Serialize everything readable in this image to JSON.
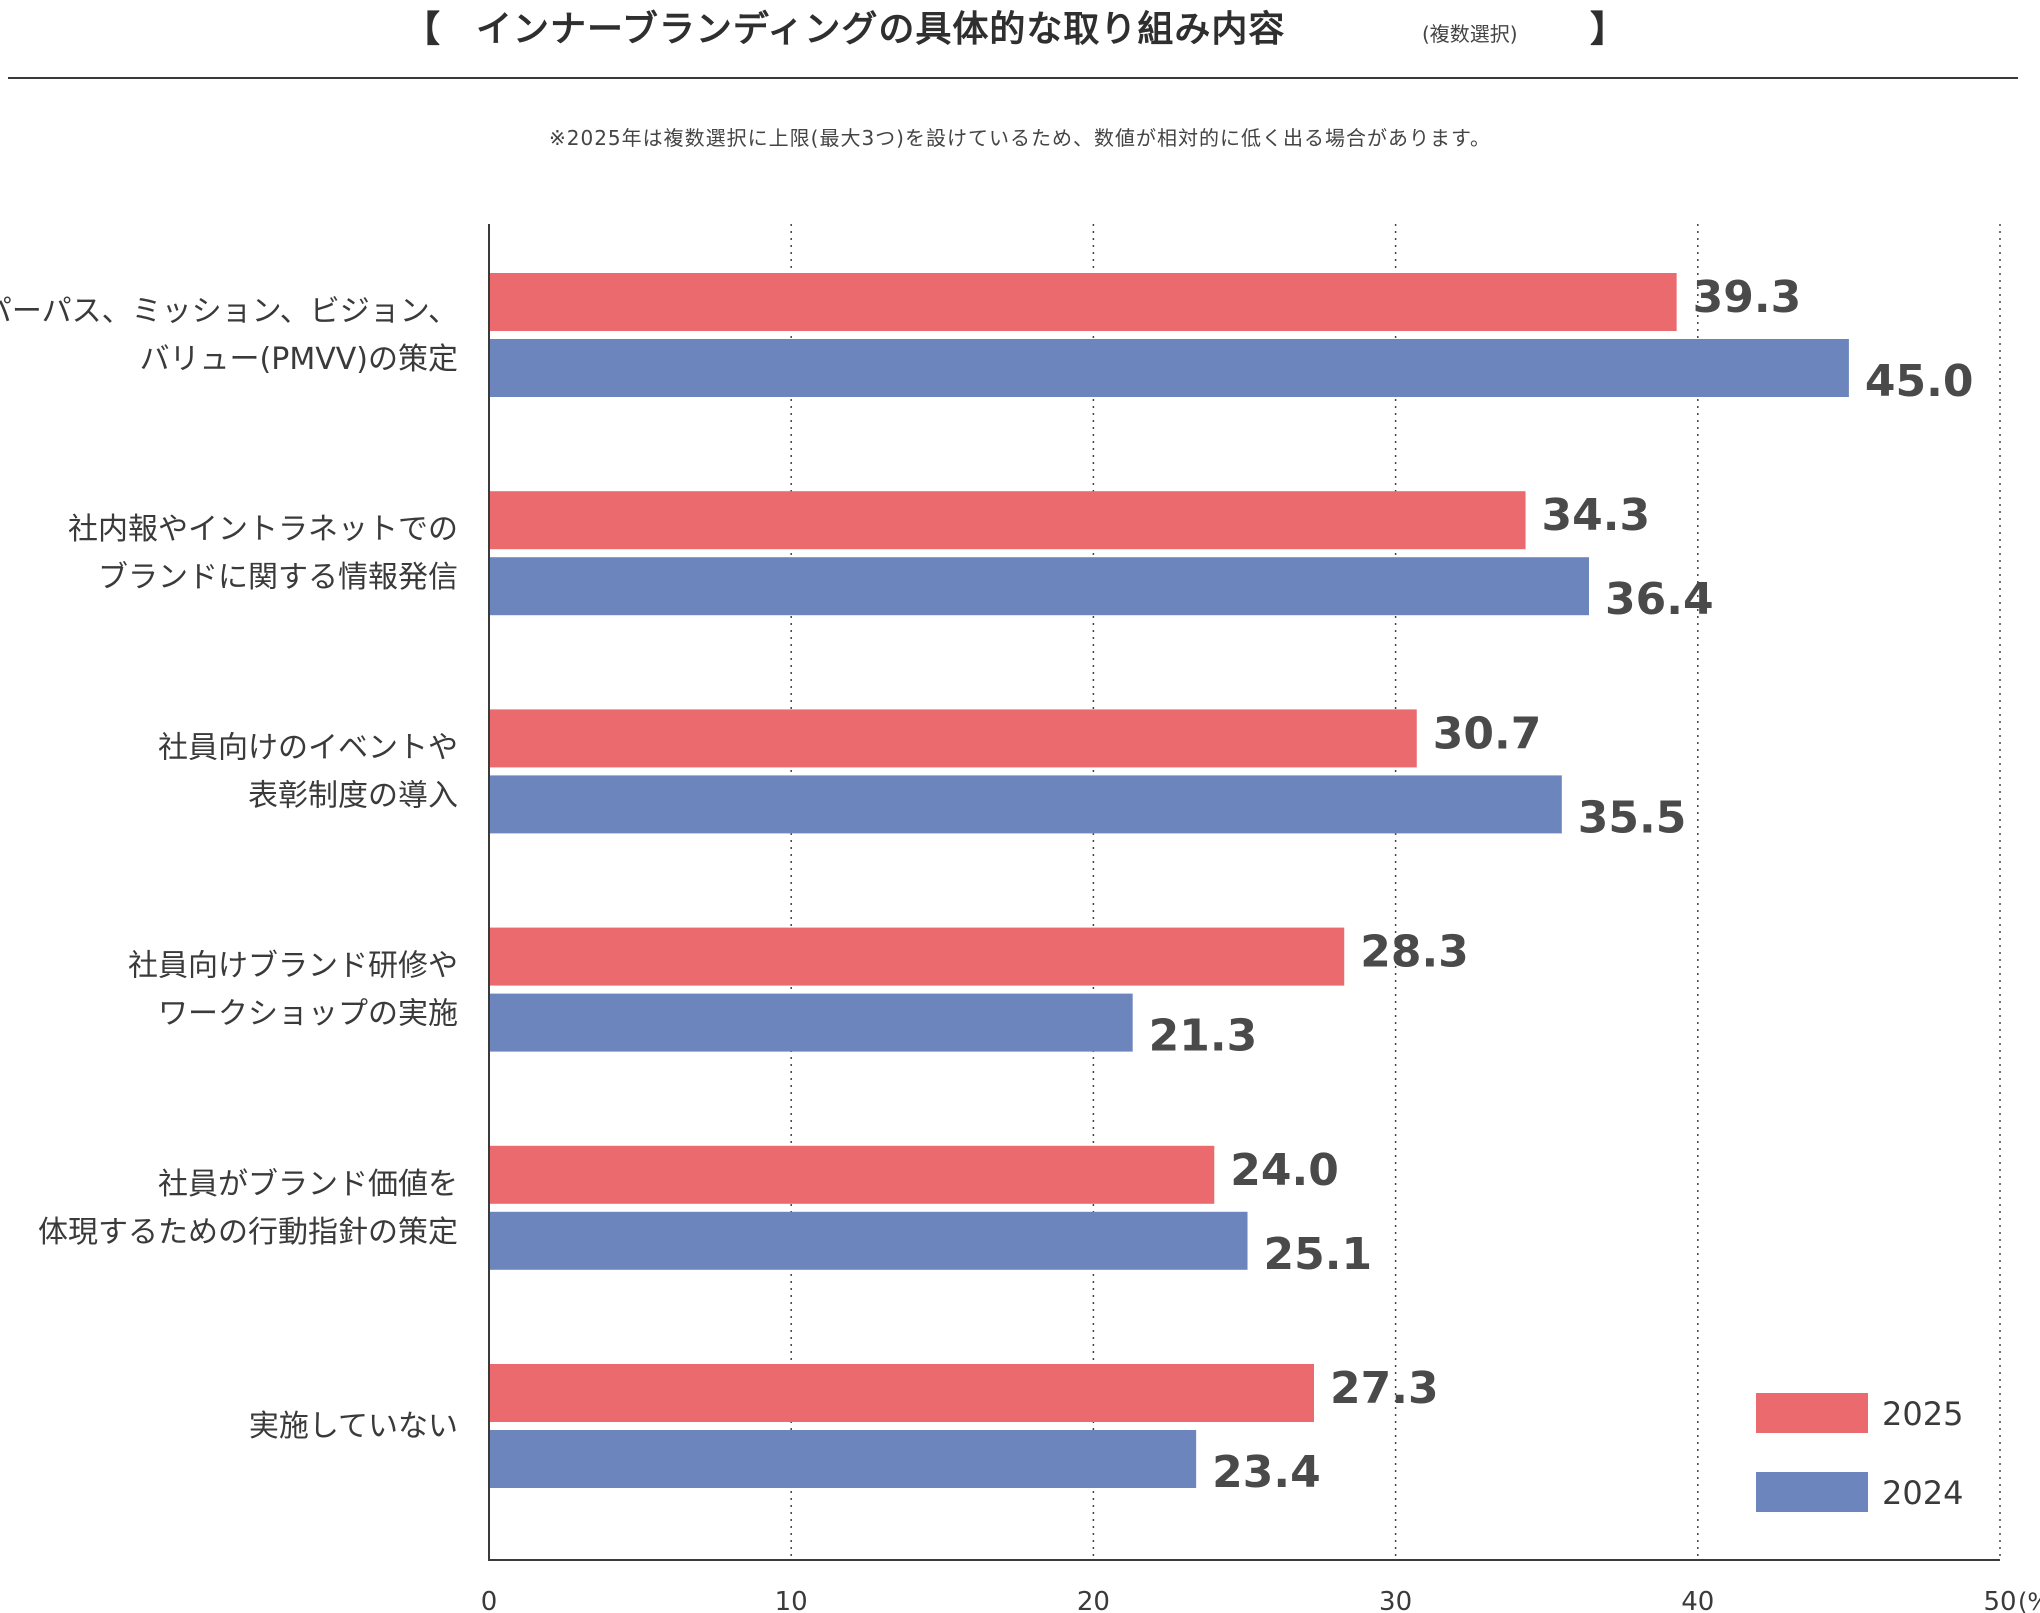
{
  "header": {
    "bracket_open": "【",
    "title": "インナーブランディングの具体的な取り組み内容",
    "subtitle": "(複数選択)",
    "bracket_close": "】",
    "note": "※2025年は複数選択に上限(最大3つ)を設けているため、数値が相対的に低く出る場合があります。"
  },
  "colors": {
    "s2025": "#ea6a6e",
    "s2024": "#6c86bd",
    "axis": "#3a3a3a",
    "grid": "#444444"
  },
  "chart_data": {
    "type": "bar",
    "orientation": "horizontal",
    "title": "インナーブランディングの具体的な取り組み内容",
    "categories": [
      [
        "パーパス、ミッション、ビジョン、",
        "バリュー(PMVV)の策定"
      ],
      [
        "社内報やイントラネットでの",
        "ブランドに関する情報発信"
      ],
      [
        "社員向けのイベントや",
        "表彰制度の導入"
      ],
      [
        "社員向けブランド研修や",
        "ワークショップの実施"
      ],
      [
        "社員がブランド価値を",
        "体現するための行動指針の策定"
      ],
      [
        "実施していない"
      ]
    ],
    "series": [
      {
        "name": "2025",
        "values": [
          39.3,
          34.3,
          30.7,
          28.3,
          24.0,
          27.3
        ],
        "labels": [
          "39.3",
          "34.3",
          "30.7",
          "28.3",
          "24.0",
          "27.3"
        ]
      },
      {
        "name": "2024",
        "values": [
          45.0,
          36.4,
          35.5,
          21.3,
          25.1,
          23.4
        ],
        "labels": [
          "45.0",
          "36.4",
          "35.5",
          "21.3",
          "25.1",
          "23.4"
        ]
      }
    ],
    "xlim": [
      0,
      50
    ],
    "xticks": [
      "0",
      "10",
      "20",
      "30",
      "40",
      "50"
    ],
    "xunit": "(%)",
    "grid": "vertical dotted",
    "legend_position": "bottom-right"
  }
}
